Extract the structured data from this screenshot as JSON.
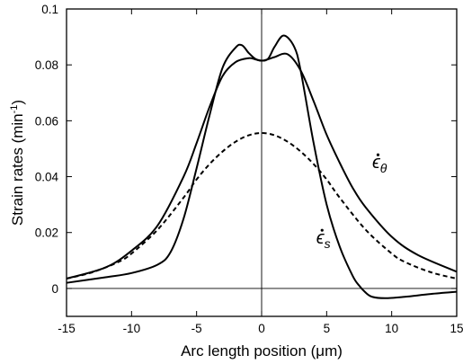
{
  "chart_data": {
    "type": "line",
    "xlabel": "Arc length position (μm)",
    "ylabel_main": "Strain rates (min",
    "ylabel_sup": "-1",
    "ylabel_close": ")",
    "xlim": [
      -15,
      15
    ],
    "ylim": [
      -0.01,
      0.1
    ],
    "x_ticks": [
      -15,
      -10,
      -5,
      0,
      5,
      10,
      15
    ],
    "x_tick_labels": [
      "-15",
      "-10",
      "-5",
      "0",
      "5",
      "10",
      "15"
    ],
    "y_ticks": [
      0,
      0.02,
      0.04,
      0.06,
      0.08,
      0.1
    ],
    "y_tick_labels": [
      "0",
      "0.02",
      "0.04",
      "0.06",
      "0.08",
      "0.1"
    ],
    "grid": false,
    "reference_lines": {
      "horizontal_y": 0,
      "vertical_x": 0
    },
    "series": [
      {
        "name": "ε̇θ",
        "style": "solid",
        "color": "#000000",
        "x": [
          -15,
          -12,
          -10,
          -8,
          -6,
          -5,
          -4,
          -3,
          -2,
          -1,
          -0.5,
          0,
          0.5,
          1,
          2,
          3,
          4,
          5,
          6,
          7,
          8,
          10,
          12,
          15
        ],
        "y": [
          0.0035,
          0.0075,
          0.0135,
          0.0225,
          0.04,
          0.052,
          0.065,
          0.076,
          0.081,
          0.0824,
          0.082,
          0.0815,
          0.082,
          0.0828,
          0.0838,
          0.078,
          0.067,
          0.055,
          0.045,
          0.036,
          0.029,
          0.0185,
          0.012,
          0.006
        ]
      },
      {
        "name": "ε̇s",
        "style": "solid",
        "color": "#000000",
        "x": [
          -15,
          -12,
          -10,
          -8,
          -7,
          -6,
          -5,
          -4,
          -3,
          -2,
          -1.5,
          -1,
          -0.5,
          0,
          0.5,
          1,
          1.7,
          2.5,
          3,
          4,
          5,
          6,
          7,
          7.5,
          8,
          8.5,
          9.5,
          11,
          13,
          15
        ],
        "y": [
          0.002,
          0.004,
          0.0055,
          0.0085,
          0.013,
          0.025,
          0.043,
          0.062,
          0.079,
          0.0862,
          0.087,
          0.0843,
          0.0822,
          0.0815,
          0.0822,
          0.0865,
          0.0905,
          0.0865,
          0.078,
          0.052,
          0.03,
          0.015,
          0.0045,
          0.001,
          -0.0015,
          -0.003,
          -0.0035,
          -0.003,
          -0.002,
          -0.0012
        ]
      },
      {
        "name": "",
        "style": "dashed",
        "color": "#000000",
        "x": [
          -15,
          -13,
          -11,
          -10,
          -8,
          -6,
          -5,
          -4,
          -3,
          -2,
          -1,
          0,
          1,
          2,
          3,
          4,
          5,
          6,
          8,
          10,
          11,
          13,
          15
        ],
        "y": [
          0.0035,
          0.0058,
          0.0095,
          0.0125,
          0.021,
          0.0325,
          0.039,
          0.0445,
          0.049,
          0.0525,
          0.0548,
          0.0556,
          0.0548,
          0.0525,
          0.049,
          0.0445,
          0.039,
          0.0325,
          0.021,
          0.0125,
          0.0095,
          0.0058,
          0.0035
        ]
      }
    ],
    "annotations": [
      {
        "base": "ϵ",
        "sub": "θ",
        "x": 8.5,
        "y": 0.043
      },
      {
        "base": "ϵ",
        "sub": "s",
        "x": 4.2,
        "y": 0.016
      }
    ]
  }
}
